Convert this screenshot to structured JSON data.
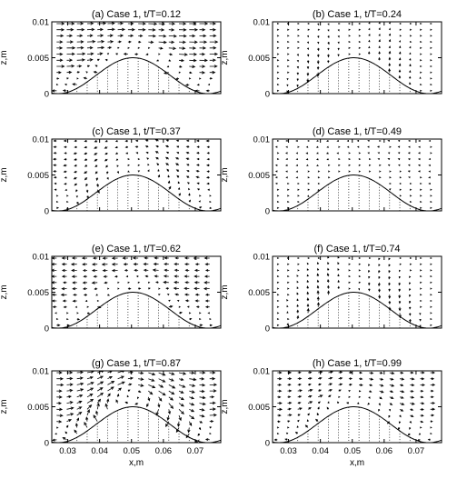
{
  "chart_data": {
    "type": "quiver",
    "layout": "4x2 grid of panels",
    "xlim": [
      0.025,
      0.078
    ],
    "ylim": [
      0,
      0.01
    ],
    "xticks": [
      "0.03",
      "0.04",
      "0.05",
      "0.06",
      "0.07"
    ],
    "yticks": [
      "0",
      "0.005",
      "0.01"
    ],
    "xlabel": "x,m",
    "ylabel": "z,m",
    "grid": "vertical dotted lines at x = 0.027 … 0.077 step 0.003 (approx.)",
    "bed_profile": {
      "description": "sinusoidal bump",
      "crest_x": 0.0505,
      "crest_z": 0.005,
      "wavelength": 0.047
    },
    "panels": [
      {
        "id": "a",
        "title": "(a) Case 1, t/T=0.12",
        "phase": 0.12,
        "flow": "upper layer moving right, lower layers moving left"
      },
      {
        "id": "b",
        "title": "(b) Case 1, t/T=0.24",
        "phase": 0.24,
        "flow": "upper layer moving right, lower layers moving left"
      },
      {
        "id": "c",
        "title": "(c) Case 1, t/T=0.37",
        "phase": 0.37,
        "flow": "weak rightward flow, vortex near left trough"
      },
      {
        "id": "d",
        "title": "(d) Case 1, t/T=0.49",
        "phase": 0.49,
        "flow": "near-zero velocity, flow reversal"
      },
      {
        "id": "e",
        "title": "(e) Case 1, t/T=0.62",
        "phase": 0.62,
        "flow": "flow moving left, downward on right flank"
      },
      {
        "id": "f",
        "title": "(f) Case 1, t/T=0.74",
        "phase": 0.74,
        "flow": "strong leftward flow, downward near bed"
      },
      {
        "id": "g",
        "title": "(g) Case 1, t/T=0.87",
        "phase": 0.87,
        "flow": "leftward upper flow, vortex at left trough"
      },
      {
        "id": "h",
        "title": "(h) Case 1, t/T=0.99",
        "phase": 0.99,
        "flow": "weak flow, upward jets near troughs"
      }
    ]
  }
}
